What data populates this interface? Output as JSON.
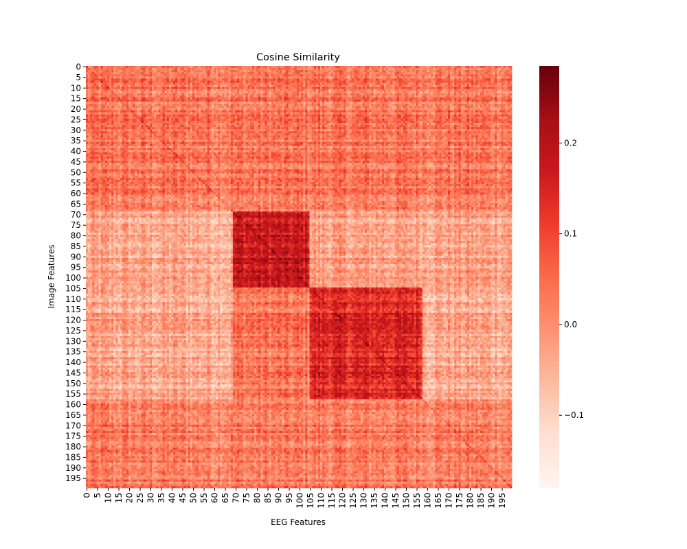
{
  "chart_data": {
    "type": "heatmap",
    "title": "Cosine Similarity",
    "xlabel": "EEG Features",
    "ylabel": "Image Features",
    "rows": 200,
    "cols": 200,
    "x_tick_labels": [
      "0",
      "5",
      "10",
      "15",
      "20",
      "25",
      "30",
      "35",
      "40",
      "45",
      "50",
      "55",
      "60",
      "65",
      "70",
      "75",
      "80",
      "85",
      "90",
      "95",
      "100",
      "105",
      "110",
      "115",
      "120",
      "125",
      "130",
      "135",
      "140",
      "145",
      "150",
      "155",
      "160",
      "165",
      "170",
      "175",
      "180",
      "185",
      "190",
      "195"
    ],
    "y_tick_labels": [
      "0",
      "5",
      "10",
      "15",
      "20",
      "25",
      "30",
      "35",
      "40",
      "45",
      "50",
      "55",
      "60",
      "65",
      "70",
      "75",
      "80",
      "85",
      "90",
      "95",
      "100",
      "105",
      "110",
      "115",
      "120",
      "125",
      "130",
      "135",
      "140",
      "145",
      "150",
      "155",
      "160",
      "165",
      "170",
      "175",
      "180",
      "185",
      "190",
      "195"
    ],
    "colormap": "Reds",
    "colormap_stops": [
      "#fff5f0",
      "#fee0d2",
      "#fcbba1",
      "#fc9272",
      "#fb6a4a",
      "#ef3b2c",
      "#cb181d",
      "#a50f15",
      "#67000d"
    ],
    "vmin": -0.18,
    "vmax": 0.285,
    "colorbar_ticks": [
      -0.1,
      0.0,
      0.1,
      0.2
    ],
    "colorbar_tick_labels": [
      "−0.1",
      "0.0",
      "0.1",
      "0.2"
    ],
    "approximate_structure": {
      "background_mean": 0.03,
      "blocks": [
        {
          "rows": [
            69,
            104
          ],
          "cols": [
            69,
            104
          ],
          "mean_value": 0.17
        },
        {
          "rows": [
            105,
            157
          ],
          "cols": [
            105,
            157
          ],
          "mean_value": 0.14
        }
      ],
      "low_regions": [
        {
          "rows": [
            69,
            157
          ],
          "cols": [
            0,
            68
          ],
          "mean_value": -0.04
        },
        {
          "rows": [
            69,
            104
          ],
          "cols": [
            105,
            199
          ],
          "mean_value": -0.03
        },
        {
          "rows": [
            105,
            157
          ],
          "cols": [
            158,
            199
          ],
          "mean_value": -0.04
        }
      ]
    }
  }
}
